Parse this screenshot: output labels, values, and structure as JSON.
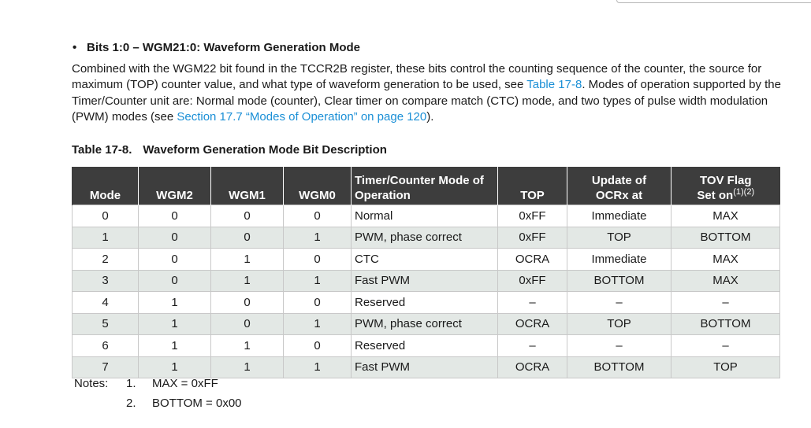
{
  "bullet": {
    "symbol": "•",
    "text": "Bits 1:0 – WGM21:0: Waveform Generation Mode"
  },
  "paragraph": {
    "t1": "Combined with the WGM22 bit found in the TCCR2B register, these bits control the counting sequence of the counter, the source for maximum (TOP) counter value, and what type of waveform generation to be used, see ",
    "link1": "Table 17-8",
    "t2": ". Modes of operation supported by the Timer/Counter unit are: Normal mode (counter), Clear timer on compare match (CTC) mode, and two types of pulse width modulation (PWM) modes (see ",
    "link2": "Section 17.7 “Modes of Operation” on page 120",
    "t3": ")."
  },
  "caption": {
    "number": "Table 17-8.",
    "title": "Waveform Generation Mode Bit Description"
  },
  "table": {
    "headers": {
      "mode": "Mode",
      "wgm2": "WGM2",
      "wgm1": "WGM1",
      "wgm0": "WGM0",
      "op_line1": "Timer/Counter Mode of",
      "op_line2": "Operation",
      "top": "TOP",
      "upd_line1": "Update of",
      "upd_line2": "OCRx at",
      "tov_line1": "TOV Flag",
      "tov_line2": "Set on",
      "tov_sup": "(1)(2)"
    },
    "rows": [
      {
        "mode": "0",
        "wgm2": "0",
        "wgm1": "0",
        "wgm0": "0",
        "op": "Normal",
        "top": "0xFF",
        "upd": "Immediate",
        "tov": "MAX"
      },
      {
        "mode": "1",
        "wgm2": "0",
        "wgm1": "0",
        "wgm0": "1",
        "op": "PWM, phase correct",
        "top": "0xFF",
        "upd": "TOP",
        "tov": "BOTTOM"
      },
      {
        "mode": "2",
        "wgm2": "0",
        "wgm1": "1",
        "wgm0": "0",
        "op": "CTC",
        "top": "OCRA",
        "upd": "Immediate",
        "tov": "MAX"
      },
      {
        "mode": "3",
        "wgm2": "0",
        "wgm1": "1",
        "wgm0": "1",
        "op": "Fast PWM",
        "top": "0xFF",
        "upd": "BOTTOM",
        "tov": "MAX"
      },
      {
        "mode": "4",
        "wgm2": "1",
        "wgm1": "0",
        "wgm0": "0",
        "op": "Reserved",
        "top": "–",
        "upd": "–",
        "tov": "–"
      },
      {
        "mode": "5",
        "wgm2": "1",
        "wgm1": "0",
        "wgm0": "1",
        "op": "PWM, phase correct",
        "top": "OCRA",
        "upd": "TOP",
        "tov": "BOTTOM"
      },
      {
        "mode": "6",
        "wgm2": "1",
        "wgm1": "1",
        "wgm0": "0",
        "op": "Reserved",
        "top": "–",
        "upd": "–",
        "tov": "–"
      },
      {
        "mode": "7",
        "wgm2": "1",
        "wgm1": "1",
        "wgm0": "1",
        "op": "Fast PWM",
        "top": "OCRA",
        "upd": "BOTTOM",
        "tov": "TOP"
      }
    ]
  },
  "notes": {
    "label": "Notes:",
    "items": [
      {
        "num": "1.",
        "text": "MAX = 0xFF"
      },
      {
        "num": "2.",
        "text": "BOTTOM = 0x00"
      }
    ]
  },
  "colors": {
    "link": "#1a8fd6",
    "header_bg": "#3d3d3d",
    "row_shade": "#e3e8e5"
  }
}
